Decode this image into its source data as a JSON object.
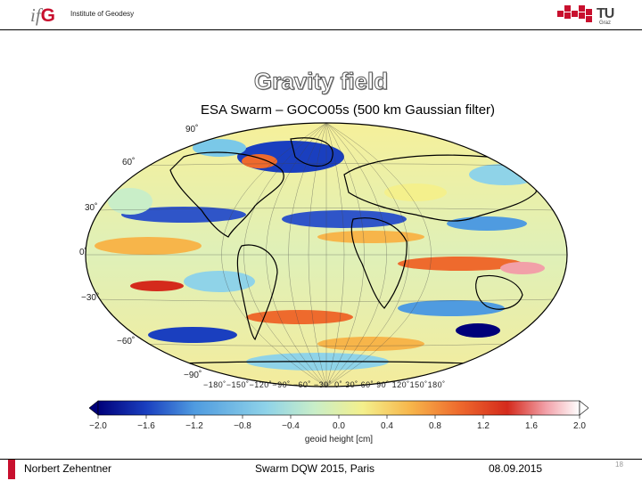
{
  "header": {
    "logo_text_i": "if",
    "logo_text_g": "G",
    "institute": "Institute of Geodesy",
    "tu_text": "TU",
    "tu_sub": "Graz"
  },
  "slide": {
    "title": "Gravity field",
    "map_title": "ESA Swarm – GOCO05s (500 km Gaussian filter)"
  },
  "map": {
    "lat_labels": [
      "90˚",
      "60˚",
      "30˚",
      "0˚",
      "−30˚",
      "−60˚",
      "−90˚"
    ],
    "lon_labels": "−180˚−150˚−120˚−90˚ −60˚ −30˚  0˚  30˚  60˚  90˚ 120˚150˚180˚"
  },
  "colorbar": {
    "ticks": [
      "−2.0",
      "−1.6",
      "−1.2",
      "−0.8",
      "−0.4",
      "0.0",
      "0.4",
      "0.8",
      "1.2",
      "1.6",
      "2.0"
    ],
    "label": "geoid height [cm]",
    "colors": [
      "#00007a",
      "#1a3fbf",
      "#4f9be0",
      "#8fd3e8",
      "#c9eec8",
      "#f4f08c",
      "#f7b54a",
      "#ee6a2d",
      "#d42a1c",
      "#f2a0a8",
      "#ffffff"
    ]
  },
  "footer": {
    "author": "Norbert Zehentner",
    "event": "Swarm DQW 2015, Paris",
    "date": "08.09.2015",
    "page": "18"
  }
}
